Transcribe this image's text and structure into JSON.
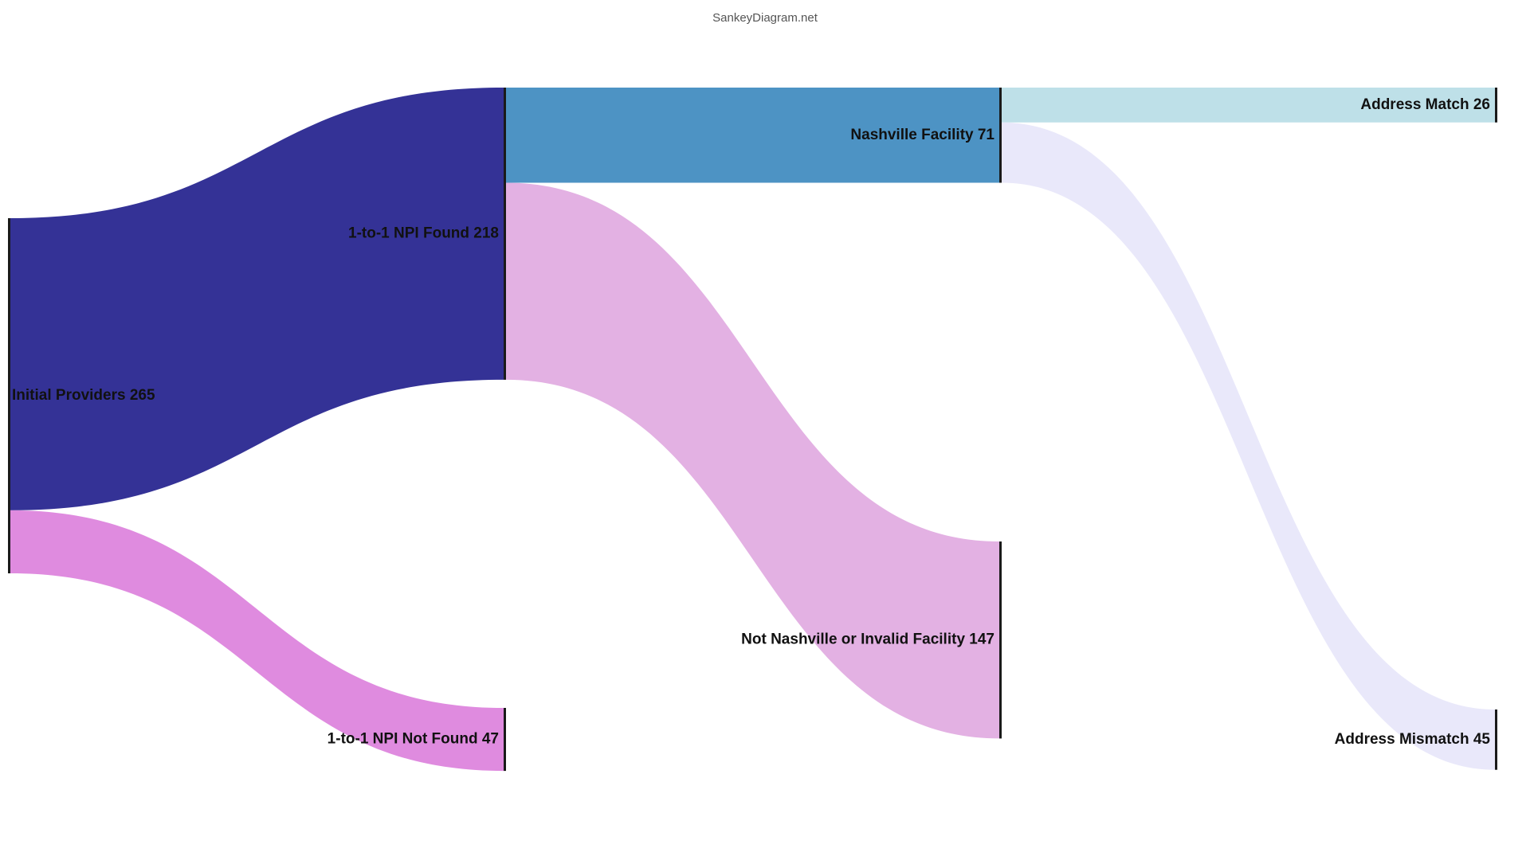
{
  "watermark": "SankeyDiagram.net",
  "nodes": [
    {
      "id": "initial",
      "name": "Initial Providers",
      "value": 265,
      "color": "#343296"
    },
    {
      "id": "found",
      "name": "1-to-1 NPI Found",
      "value": 218,
      "color": "#343296"
    },
    {
      "id": "notfound",
      "name": "1-to-1 NPI Not Found",
      "value": 47,
      "color": "#df8bdf"
    },
    {
      "id": "nashville",
      "name": "Nashville Facility",
      "value": 71,
      "color": "#4d93c4"
    },
    {
      "id": "notnash",
      "name": "Not Nashville or Invalid Facility",
      "value": 147,
      "color": "#e3b1e3"
    },
    {
      "id": "match",
      "name": "Address Match",
      "value": 26,
      "color": "#bee0e8"
    },
    {
      "id": "mismatch",
      "name": "Address Mismatch",
      "value": 45,
      "color": "#e9e8fa"
    }
  ],
  "links": [
    {
      "source": "initial",
      "target": "found",
      "value": 218,
      "color": "#343296"
    },
    {
      "source": "initial",
      "target": "notfound",
      "value": 47,
      "color": "#df8bdf"
    },
    {
      "source": "found",
      "target": "nashville",
      "value": 71,
      "color": "#4d93c4"
    },
    {
      "source": "found",
      "target": "notnash",
      "value": 147,
      "color": "#e3b1e3"
    },
    {
      "source": "nashville",
      "target": "match",
      "value": 26,
      "color": "#bee0e8"
    },
    {
      "source": "nashville",
      "target": "mismatch",
      "value": 45,
      "color": "#e9e8fa"
    }
  ]
}
